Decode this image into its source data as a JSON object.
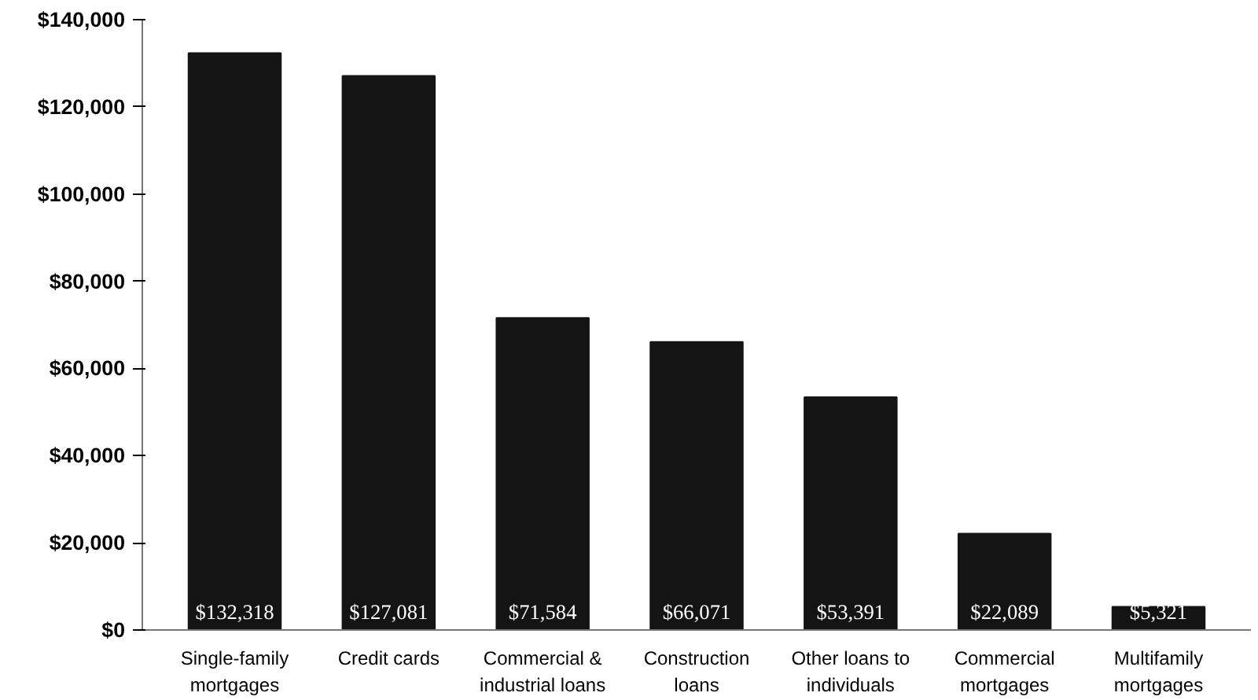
{
  "chart_data": {
    "type": "bar",
    "categories": [
      "Single-family mortgages",
      "Credit cards",
      "Commercial & industrial loans",
      "Construction loans",
      "Other loans to individuals",
      "Commercial mortgages",
      "Multifamily mortgages"
    ],
    "values": [
      132318,
      127081,
      71584,
      66071,
      53391,
      22089,
      5321
    ],
    "value_labels": [
      "$132,318",
      "$127,081",
      "$71,584",
      "$66,071",
      "$53,391",
      "$22,089",
      "$5,321"
    ],
    "color": "#141414",
    "ylim": [
      0,
      140000
    ],
    "yticks": [
      {
        "value": 0,
        "label": "$0"
      },
      {
        "value": 20000,
        "label": "$20,000"
      },
      {
        "value": 40000,
        "label": "$40,000"
      },
      {
        "value": 60000,
        "label": "$60,000"
      },
      {
        "value": 80000,
        "label": "$80,000"
      },
      {
        "value": 100000,
        "label": "$100,000"
      },
      {
        "value": 120000,
        "label": "$120,000"
      },
      {
        "value": 140000,
        "label": "$140,000"
      }
    ],
    "grid": false
  }
}
